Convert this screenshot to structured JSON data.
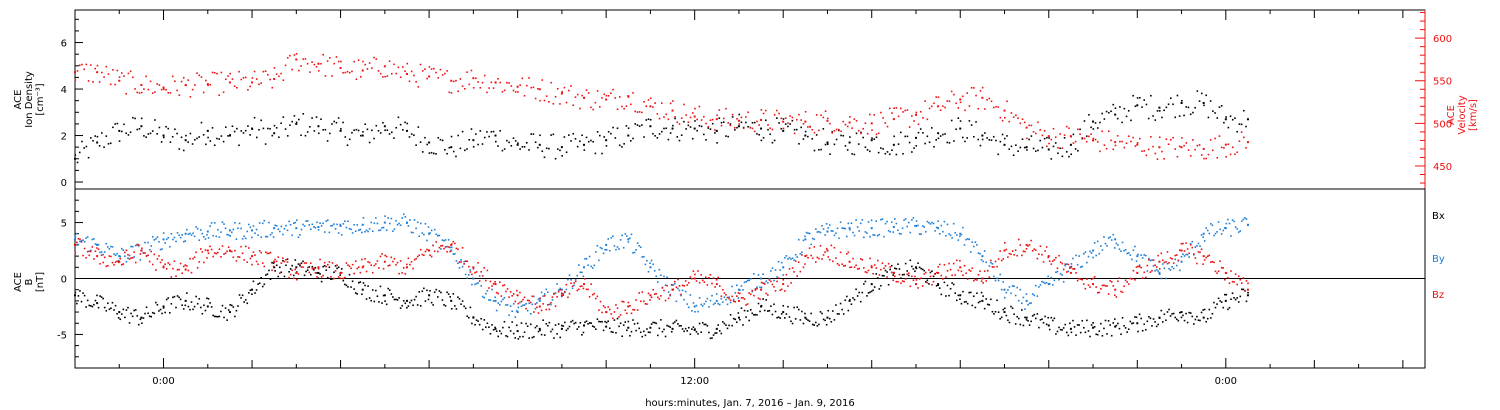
{
  "chart_data": [
    {
      "type": "scatter",
      "panel": "top",
      "y_label_lines": [
        "ACE",
        "Ion Density",
        "[cm⁻³]"
      ],
      "right_label_lines": [
        "ACE",
        "Velocity",
        "[km/s]"
      ],
      "ylim": [
        -0.3,
        7.4
      ],
      "y_ticks": [
        "0",
        "2",
        "4",
        "6"
      ],
      "y2lim": [
        423,
        633
      ],
      "y2_ticks": [
        "450",
        "500",
        "550",
        "600"
      ],
      "grid": false,
      "series": [
        {
          "axis": "left",
          "color": "#000000",
          "x_hours": [
            -2,
            -1.5,
            -1,
            -0.5,
            0,
            0.5,
            1,
            1.5,
            2,
            2.5,
            3,
            3.5,
            4,
            4.5,
            5,
            5.5,
            6,
            6.5,
            7,
            7.5,
            8,
            8.5,
            9,
            9.5,
            10,
            10.5,
            11,
            11.5,
            12,
            12.5,
            13,
            13.5,
            14,
            14.5,
            15,
            15.5,
            16,
            16.5,
            17,
            17.5,
            18,
            18.5,
            19,
            19.5,
            20,
            20.5,
            21,
            21.5,
            22,
            22.5,
            23,
            23.5,
            24,
            24.5
          ],
          "values": [
            1.0,
            1.7,
            2.2,
            2.4,
            2.0,
            1.8,
            2.2,
            2.0,
            2.3,
            2.1,
            2.5,
            2.4,
            2.2,
            2.0,
            2.4,
            2.2,
            1.7,
            1.5,
            1.8,
            2.0,
            1.6,
            1.6,
            1.5,
            1.6,
            1.8,
            2.0,
            2.4,
            2.3,
            2.3,
            2.2,
            2.4,
            2.3,
            2.2,
            2.0,
            1.7,
            1.7,
            1.8,
            1.6,
            1.9,
            2.1,
            2.3,
            2.0,
            1.6,
            1.5,
            1.4,
            1.6,
            2.6,
            2.9,
            3.3,
            3.2,
            3.4,
            3.4,
            2.7,
            2.7
          ]
        },
        {
          "axis": "right",
          "color": "#ee1111",
          "x_hours": [
            -2,
            -1.5,
            -1,
            -0.5,
            0,
            0.5,
            1,
            1.5,
            2,
            2.5,
            3,
            3.5,
            4,
            4.5,
            5,
            5.5,
            6,
            6.5,
            7,
            7.5,
            8,
            8.5,
            9,
            9.5,
            10,
            10.5,
            11,
            11.5,
            12,
            12.5,
            13,
            13.5,
            14,
            14.5,
            15,
            15.5,
            16,
            16.5,
            17,
            17.5,
            18,
            18.5,
            19,
            19.5,
            20,
            20.5,
            21,
            21.5,
            22,
            22.5,
            23,
            23.5,
            24,
            24.5
          ],
          "values": [
            560,
            560,
            550,
            545,
            542,
            545,
            546,
            548,
            548,
            552,
            575,
            570,
            565,
            562,
            567,
            558,
            555,
            550,
            553,
            548,
            543,
            540,
            535,
            530,
            528,
            532,
            520,
            515,
            508,
            505,
            503,
            504,
            502,
            502,
            503,
            501,
            500,
            505,
            510,
            520,
            528,
            530,
            515,
            495,
            485,
            485,
            480,
            478,
            475,
            472,
            472,
            470,
            475,
            478
          ]
        }
      ]
    },
    {
      "type": "scatter",
      "panel": "bottom",
      "y_label_lines": [
        "ACE",
        "B",
        "[nT]"
      ],
      "ylim": [
        -8,
        8
      ],
      "y_ticks": [
        "-5",
        "0",
        "5"
      ],
      "x_tick_labels": [
        "0:00",
        "12:00",
        "0:00"
      ],
      "x_label": "hours:minutes, Jan. 7, 2016 – Jan. 9, 2016",
      "x_range_hours": [
        -2,
        28.5
      ],
      "x_major_ticks_hours": [
        0,
        12,
        24
      ],
      "grid": false,
      "legend_placement": "right",
      "series": [
        {
          "name": "Bx",
          "color": "#000000",
          "x_hours": [
            -2,
            -1.5,
            -1,
            -0.5,
            0,
            0.5,
            1,
            1.5,
            2,
            2.5,
            3,
            3.5,
            4,
            4.5,
            5,
            5.5,
            6,
            6.5,
            7,
            7.5,
            8,
            8.5,
            9,
            9.5,
            10,
            10.5,
            11,
            11.5,
            12,
            12.5,
            13,
            13.5,
            14,
            14.5,
            15,
            15.5,
            16,
            16.5,
            17,
            17.5,
            18,
            18.5,
            19,
            19.5,
            20,
            20.5,
            21,
            21.5,
            22,
            22.5,
            23,
            23.5,
            24,
            24.5
          ],
          "values": [
            -1.5,
            -2.2,
            -3.0,
            -3.5,
            -2.5,
            -2.0,
            -2.5,
            -3.0,
            -1.0,
            1.0,
            1.0,
            0.5,
            0.5,
            -1.0,
            -1.5,
            -2.0,
            -1.5,
            -2.0,
            -3.5,
            -4.5,
            -4.7,
            -4.5,
            -4.5,
            -4.2,
            -4.3,
            -4.4,
            -4.4,
            -4.5,
            -4.6,
            -4.5,
            -3.5,
            -2.5,
            -3.0,
            -3.5,
            -3.5,
            -2.0,
            -0.5,
            0.5,
            1.0,
            -0.5,
            -1.5,
            -2.0,
            -3.0,
            -3.5,
            -4.2,
            -4.5,
            -4.4,
            -4.3,
            -4.0,
            -3.5,
            -3.0,
            -3.5,
            -2.0,
            -1.5
          ]
        },
        {
          "name": "By",
          "color": "#1f7fd6",
          "x_hours": [
            -2,
            -1.5,
            -1,
            -0.5,
            0,
            0.5,
            1,
            1.5,
            2,
            2.5,
            3,
            3.5,
            4,
            4.5,
            5,
            5.5,
            6,
            6.5,
            7,
            7.5,
            8,
            8.5,
            9,
            9.5,
            10,
            10.5,
            11,
            11.5,
            12,
            12.5,
            13,
            13.5,
            14,
            14.5,
            15,
            15.5,
            16,
            16.5,
            17,
            17.5,
            18,
            18.5,
            19,
            19.5,
            20,
            20.5,
            21,
            21.5,
            22,
            22.5,
            23,
            23.5,
            24,
            24.5
          ],
          "values": [
            3.5,
            3.0,
            2.0,
            2.5,
            3.5,
            4.0,
            4.2,
            4.3,
            4.3,
            4.5,
            4.5,
            4.6,
            4.7,
            4.8,
            5.0,
            5.0,
            4.0,
            2.5,
            0.0,
            -2.0,
            -3.0,
            -2.0,
            -1.0,
            1.0,
            3.0,
            3.5,
            1.0,
            -1.0,
            -2.5,
            -2.0,
            -1.0,
            0.0,
            1.0,
            3.5,
            4.2,
            4.5,
            4.5,
            4.6,
            4.7,
            4.5,
            4.0,
            2.0,
            -1.0,
            -2.0,
            -0.5,
            1.0,
            2.5,
            3.5,
            2.0,
            0.5,
            1.5,
            4.0,
            4.5,
            4.8
          ]
        },
        {
          "name": "Bz",
          "color": "#ee1111",
          "x_hours": [
            -2,
            -1.5,
            -1,
            -0.5,
            0,
            0.5,
            1,
            1.5,
            2,
            2.5,
            3,
            3.5,
            4,
            4.5,
            5,
            5.5,
            6,
            6.5,
            7,
            7.5,
            8,
            8.5,
            9,
            9.5,
            10,
            10.5,
            11,
            11.5,
            12,
            12.5,
            13,
            13.5,
            14,
            14.5,
            15,
            15.5,
            16,
            16.5,
            17,
            17.5,
            18,
            18.5,
            19,
            19.5,
            20,
            20.5,
            21,
            21.5,
            22,
            22.5,
            23,
            23.5,
            24,
            24.5
          ],
          "values": [
            3.0,
            2.0,
            1.5,
            2.5,
            1.0,
            0.8,
            2.5,
            2.5,
            2.0,
            1.5,
            0.5,
            1.0,
            0.5,
            1.0,
            1.5,
            1.0,
            2.5,
            3.0,
            1.0,
            -0.5,
            -1.5,
            -2.5,
            -1.5,
            -0.5,
            -3.0,
            -2.5,
            -1.5,
            -1.0,
            0.0,
            -0.5,
            -2.0,
            -1.0,
            -0.5,
            2.0,
            2.5,
            1.5,
            1.0,
            0.5,
            -0.5,
            0.5,
            1.0,
            0.0,
            2.5,
            3.0,
            2.0,
            0.5,
            -0.5,
            -1.0,
            0.5,
            1.5,
            2.5,
            2.0,
            0.5,
            -1.0
          ]
        }
      ]
    }
  ]
}
